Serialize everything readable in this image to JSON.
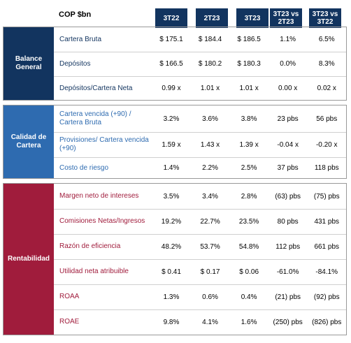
{
  "header": {
    "title": "COP $bn",
    "columns": [
      "3T22",
      "2T23",
      "3T23",
      "3T23 vs 2T23",
      "3T23 vs 3T22"
    ]
  },
  "colors": {
    "header_bg": "#12345f",
    "balance_bg": "#12345f",
    "calidad_bg": "#2e6bb0",
    "rentabilidad_bg": "#a01c3c",
    "calidad_text": "#2e6bb0",
    "rentabilidad_text": "#a01c3c"
  },
  "sections": [
    {
      "label": "Balance General",
      "rows": [
        {
          "label": "Cartera Bruta",
          "values": [
            "$ 175.1",
            "$ 184.4",
            "$ 186.5",
            "1.1%",
            "6.5%"
          ]
        },
        {
          "label": "Depósitos",
          "values": [
            "$ 166.5",
            "$ 180.2",
            "$ 180.3",
            "0.0%",
            "8.3%"
          ]
        },
        {
          "label": "Depósitos/Cartera Neta",
          "values": [
            "0.99 x",
            "1.01 x",
            "1.01 x",
            "0.00 x",
            "0.02 x"
          ]
        }
      ]
    },
    {
      "label": "Calidad de Cartera",
      "rows": [
        {
          "label": "Cartera vencida (+90) / Cartera Bruta",
          "values": [
            "3.2%",
            "3.6%",
            "3.8%",
            "23 pbs",
            "56 pbs"
          ]
        },
        {
          "label": "Provisiones/ Cartera vencida (+90)",
          "values": [
            "1.59 x",
            "1.43 x",
            "1.39 x",
            "-0.04 x",
            "-0.20 x"
          ]
        },
        {
          "label": "Costo de riesgo",
          "values": [
            "1.4%",
            "2.2%",
            "2.5%",
            "37 pbs",
            "118 pbs"
          ]
        }
      ]
    },
    {
      "label": "Rentabilidad",
      "rows": [
        {
          "label": "Margen neto de intereses",
          "values": [
            "3.5%",
            "3.4%",
            "2.8%",
            "(63) pbs",
            "(75) pbs"
          ]
        },
        {
          "label": "Comisiones Netas/Ingresos",
          "values": [
            "19.2%",
            "22.7%",
            "23.5%",
            "80 pbs",
            "431 pbs"
          ]
        },
        {
          "label": "Razón de eficiencia",
          "values": [
            "48.2%",
            "53.7%",
            "54.8%",
            "112 pbs",
            "661 pbs"
          ]
        },
        {
          "label": "Utilidad neta atribuible",
          "values": [
            "$ 0.41",
            "$ 0.17",
            "$ 0.06",
            "-61.0%",
            "-84.1%"
          ]
        },
        {
          "label": "ROAA",
          "values": [
            "1.3%",
            "0.6%",
            "0.4%",
            "(21) pbs",
            "(92) pbs"
          ]
        },
        {
          "label": "ROAE",
          "values": [
            "9.8%",
            "4.1%",
            "1.6%",
            "(250) pbs",
            "(826) pbs"
          ]
        }
      ]
    }
  ]
}
